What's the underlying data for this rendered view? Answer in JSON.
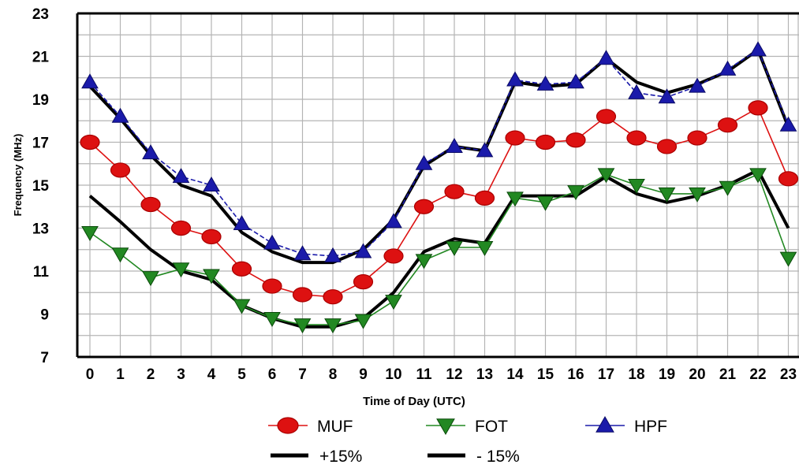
{
  "chart_data": {
    "type": "line",
    "xlabel": "Time of Day (UTC)",
    "ylabel": "Frequency (MHz)",
    "x": [
      0,
      1,
      2,
      3,
      4,
      5,
      6,
      7,
      8,
      9,
      10,
      11,
      12,
      13,
      14,
      15,
      16,
      17,
      18,
      19,
      20,
      21,
      22,
      23
    ],
    "x_tick_labels": [
      "0",
      "1",
      "2",
      "3",
      "4",
      "5",
      "6",
      "7",
      "8",
      "9",
      "10",
      "11",
      "12",
      "13",
      "14",
      "15",
      "16",
      "17",
      "18",
      "19",
      "20",
      "21",
      "22",
      "23"
    ],
    "y_ticks": [
      7,
      9,
      11,
      13,
      15,
      17,
      19,
      21,
      23
    ],
    "y_tick_labels": [
      "7",
      "9",
      "11",
      "13",
      "15",
      "17",
      "19",
      "21",
      "23"
    ],
    "xlim": [
      0,
      23
    ],
    "ylim": [
      7,
      23
    ],
    "grid": true,
    "legend": "bottom",
    "series": [
      {
        "name": "+15%",
        "color": "#000000",
        "marker": "none",
        "style": "thick",
        "values": [
          19.6,
          18.1,
          16.4,
          15.0,
          14.5,
          12.8,
          11.9,
          11.4,
          11.4,
          12.0,
          13.4,
          15.9,
          16.8,
          16.6,
          19.8,
          19.6,
          19.7,
          20.9,
          19.8,
          19.3,
          19.7,
          20.3,
          21.3,
          17.7
        ]
      },
      {
        "name": "- 15%",
        "color": "#000000",
        "marker": "none",
        "style": "thick",
        "values": [
          14.5,
          13.3,
          12.0,
          11.0,
          10.6,
          9.4,
          8.8,
          8.4,
          8.4,
          8.8,
          10.0,
          11.9,
          12.5,
          12.3,
          14.5,
          14.5,
          14.5,
          15.4,
          14.6,
          14.2,
          14.5,
          15.0,
          15.7,
          13.0
        ]
      },
      {
        "name": "MUF",
        "color": "#dd1111",
        "marker": "circle",
        "values": [
          17.0,
          15.7,
          14.1,
          13.0,
          12.6,
          11.1,
          10.3,
          9.9,
          9.8,
          10.5,
          11.7,
          14.0,
          14.7,
          14.4,
          17.2,
          17.0,
          17.1,
          18.2,
          17.2,
          16.8,
          17.2,
          17.8,
          18.6,
          15.3
        ]
      },
      {
        "name": "FOT",
        "color": "#228822",
        "marker": "triangle-down",
        "values": [
          12.8,
          11.8,
          10.7,
          11.1,
          10.8,
          9.4,
          8.8,
          8.5,
          8.5,
          8.7,
          9.6,
          11.5,
          12.1,
          12.1,
          14.4,
          14.2,
          14.7,
          15.5,
          15.0,
          14.6,
          14.6,
          14.9,
          15.5,
          11.6
        ]
      },
      {
        "name": "HPF",
        "color": "#1a1aaa",
        "marker": "triangle-up",
        "style": "dashed",
        "values": [
          19.8,
          18.2,
          16.5,
          15.4,
          15.0,
          13.2,
          12.3,
          11.8,
          11.7,
          11.9,
          13.3,
          16.0,
          16.8,
          16.6,
          19.9,
          19.7,
          19.8,
          20.9,
          19.3,
          19.1,
          19.6,
          20.4,
          21.3,
          17.8
        ]
      }
    ],
    "legend_entries": [
      {
        "label": "MUF",
        "color": "#dd1111",
        "marker": "circle"
      },
      {
        "label": "FOT",
        "color": "#228822",
        "marker": "triangle-down"
      },
      {
        "label": "HPF",
        "color": "#1a1aaa",
        "marker": "triangle-up"
      },
      {
        "label": "+15%",
        "color": "#000000",
        "marker": "none"
      },
      {
        "label": "- 15%",
        "color": "#000000",
        "marker": "none"
      }
    ]
  }
}
